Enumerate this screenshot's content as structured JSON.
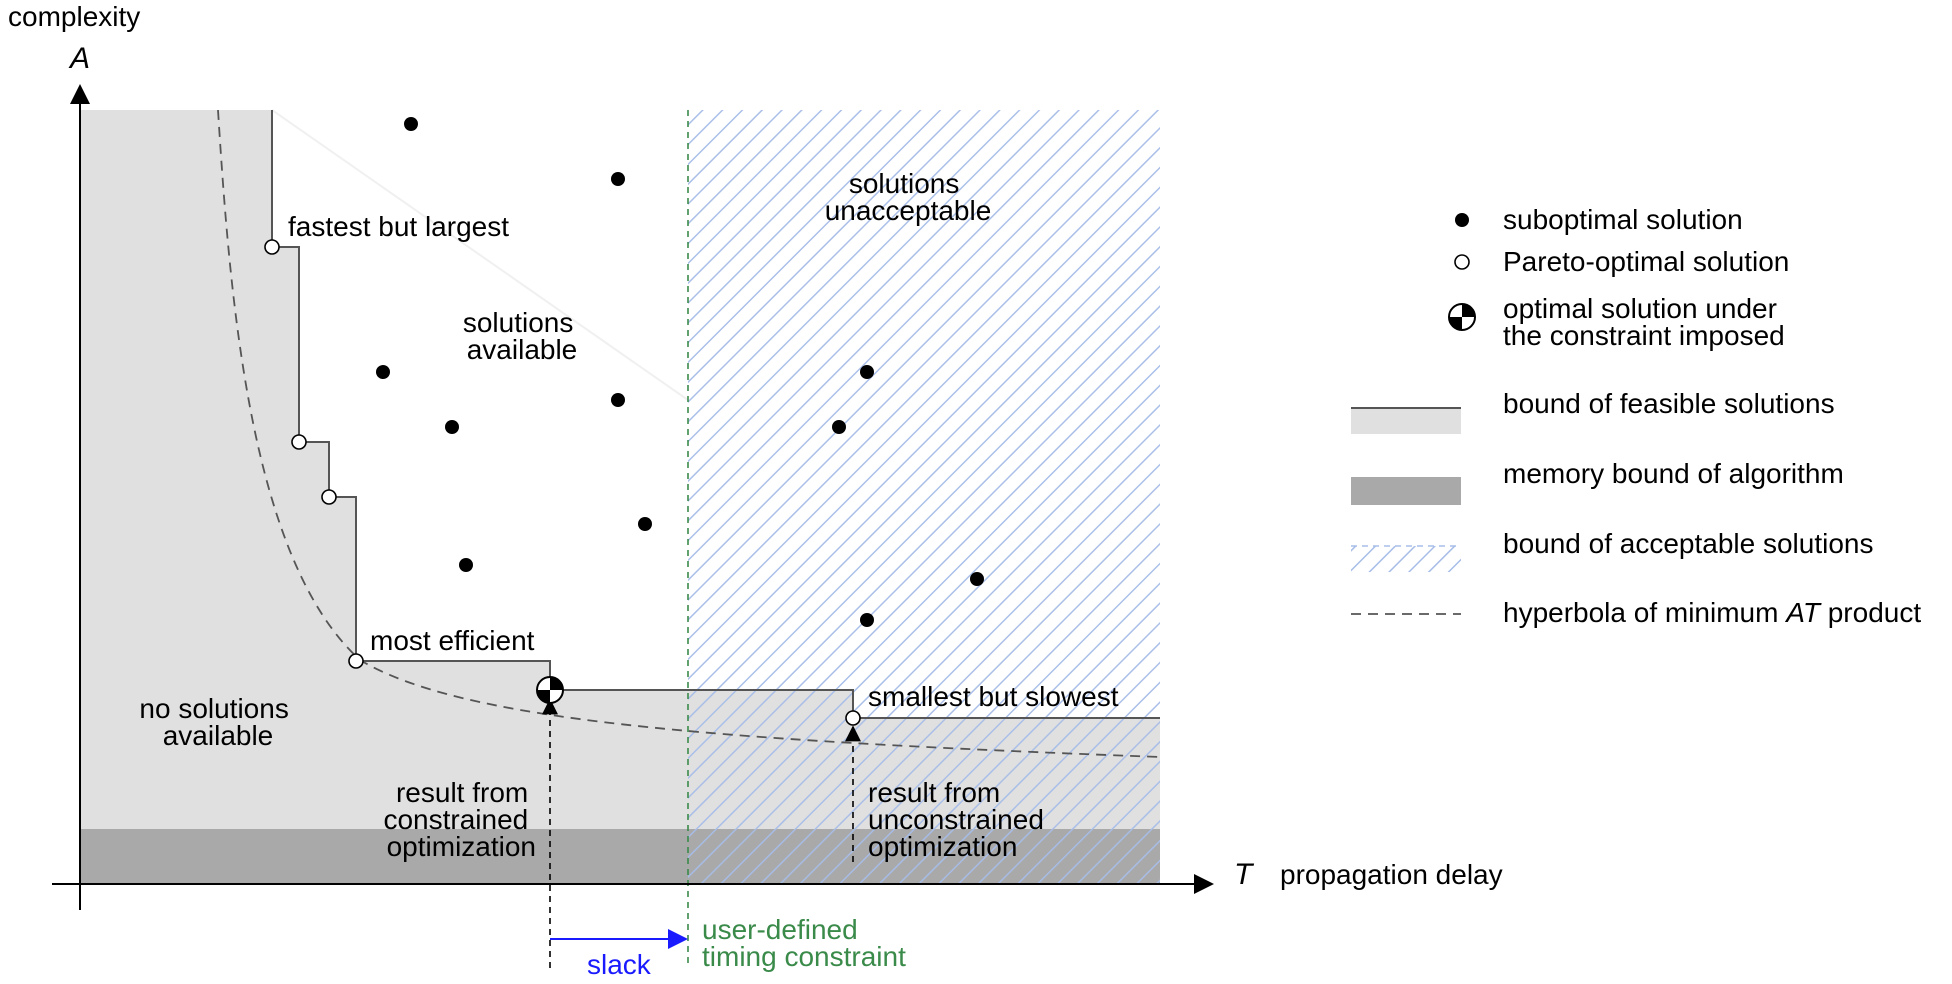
{
  "axes": {
    "y_title": "complexity",
    "y_letter": "A",
    "x_letter": "T",
    "x_title": "propagation delay"
  },
  "regions": {
    "no_solutions": [
      "no solutions",
      "available"
    ],
    "solutions_available": [
      "solutions",
      "available"
    ],
    "solutions_unacceptable": [
      "solutions",
      "unacceptable"
    ]
  },
  "annotations": {
    "fastest": "fastest but largest",
    "most_efficient": "most efficient",
    "smallest": "smallest but slowest",
    "constrained": [
      "result from",
      "constrained",
      "optimization"
    ],
    "unconstrained": [
      "result from",
      "unconstrained",
      "optimization"
    ],
    "slack": "slack",
    "timing_constraint": [
      "user-defined",
      "timing constraint"
    ]
  },
  "legend": {
    "suboptimal": "suboptimal solution",
    "pareto": "Pareto-optimal solution",
    "optimal": [
      "optimal solution under",
      "the constraint imposed"
    ],
    "feasible_bound": "bound of feasible solutions",
    "memory_bound": "memory bound of algorithm",
    "acceptable_bound": "bound of acceptable solutions",
    "hyperbola": "hyperbola of minimum",
    "hyperbola_italic": "AT",
    "hyperbola_suffix": "product"
  },
  "colors": {
    "feasible_fill": "#e0e0e0",
    "memory_fill": "#a9a9a9",
    "hatch": "#a7bde8",
    "slack": "#1a1aff",
    "constraint": "#3a8a4a"
  }
}
